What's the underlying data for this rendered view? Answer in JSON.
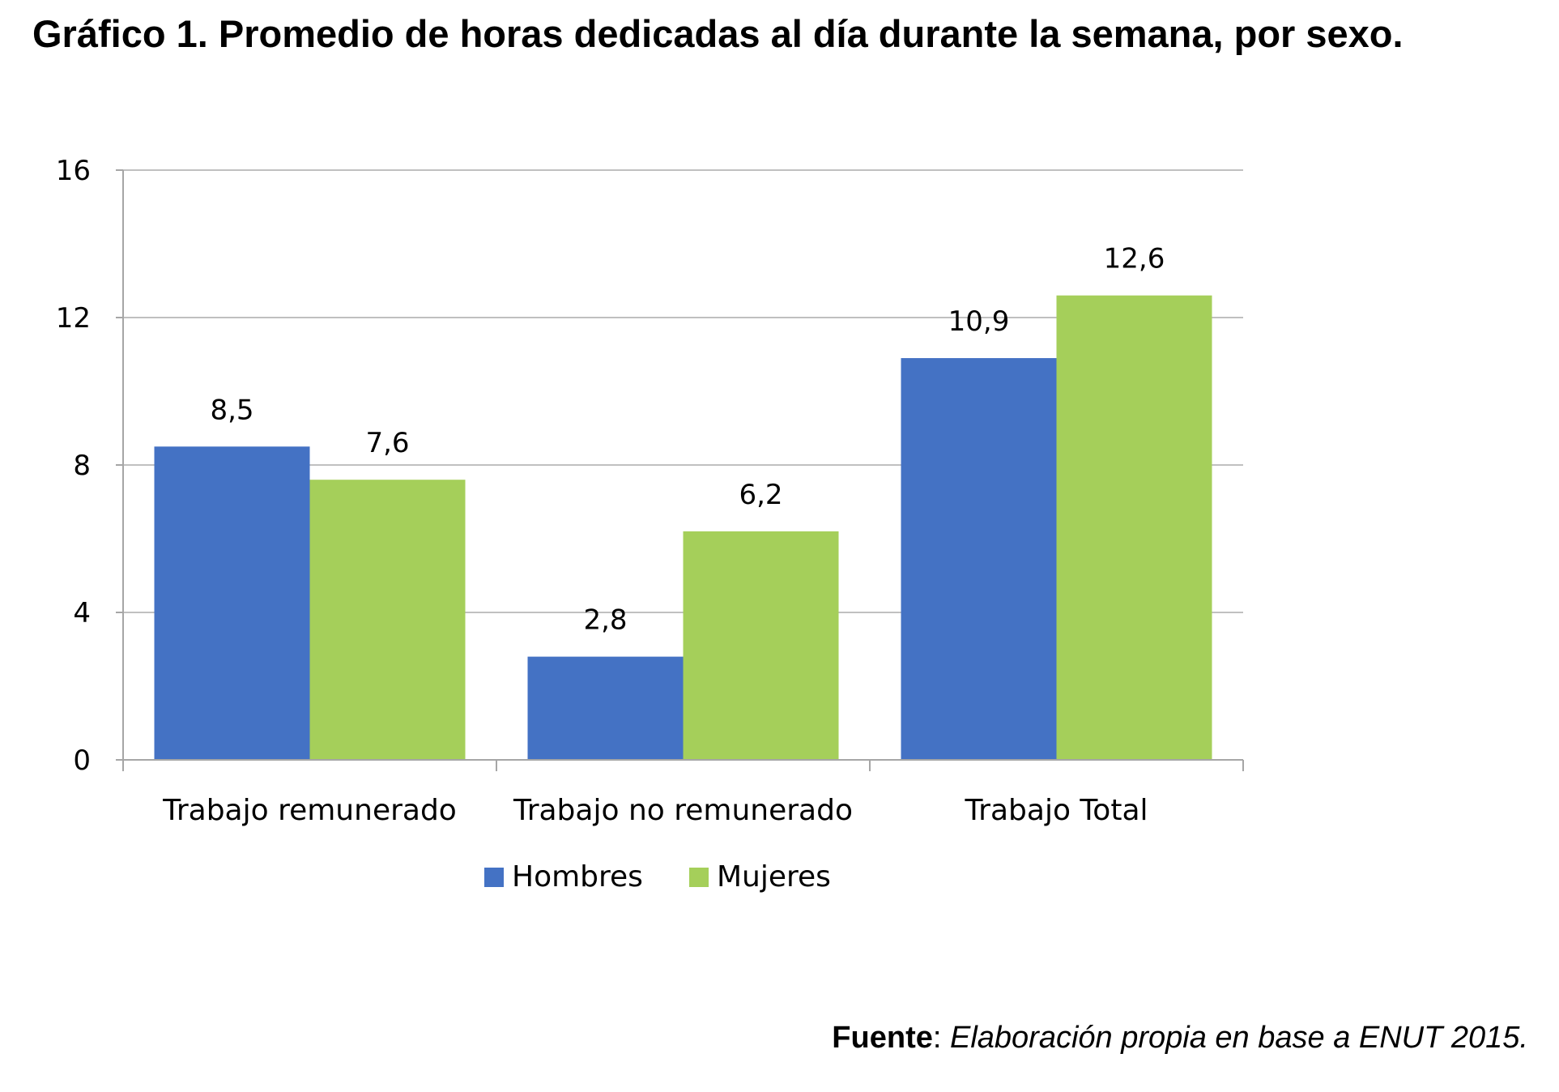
{
  "title": "Gráfico 1. Promedio de horas dedicadas al día durante la semana, por sexo.",
  "source": {
    "label": "Fuente",
    "separator": ": ",
    "text": "Elaboración propia en base a ENUT 2015."
  },
  "chart_data": {
    "type": "bar",
    "title": "Gráfico 1. Promedio de horas dedicadas al día durante la semana, por sexo.",
    "categories": [
      "Trabajo remunerado",
      "Trabajo no remunerado",
      "Trabajo Total"
    ],
    "series": [
      {
        "name": "Hombres",
        "color": "#4472C4",
        "values": [
          8.5,
          2.8,
          10.9
        ],
        "labels": [
          "8,5",
          "2,8",
          "10,9"
        ]
      },
      {
        "name": "Mujeres",
        "color": "#A5CF5A",
        "values": [
          7.6,
          6.2,
          12.6
        ],
        "labels": [
          "7,6",
          "6,2",
          "12,6"
        ]
      }
    ],
    "ylim": [
      0,
      16
    ],
    "yticks": [
      0,
      4,
      8,
      12,
      16
    ],
    "grid": true,
    "legend": "bottom"
  }
}
